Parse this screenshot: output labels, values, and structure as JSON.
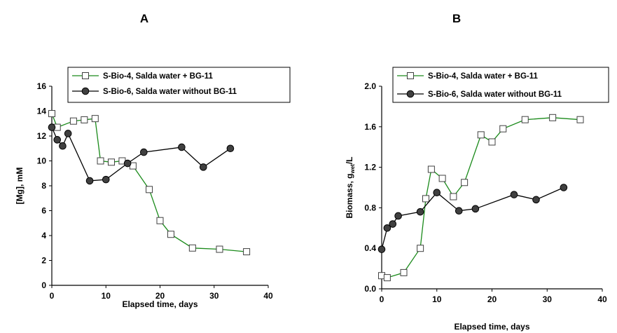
{
  "chart_data": [
    {
      "panel": "A",
      "type": "line",
      "xlabel": "Elapsed time, days",
      "ylabel": "[Mg], mM",
      "xlim": [
        0,
        40
      ],
      "ylim": [
        0,
        16
      ],
      "xticks": [
        0,
        10,
        20,
        30,
        40
      ],
      "yticks": [
        0,
        2,
        4,
        6,
        8,
        10,
        12,
        14,
        16
      ],
      "ytick_labels": [
        "0",
        "2",
        "4",
        "6",
        "8",
        "10",
        "12",
        "14",
        "16"
      ],
      "grid": false,
      "legend_position": "top",
      "series": [
        {
          "name": "S-Bio-4, Salda water + BG-11",
          "marker": "open-square",
          "line_color": "#1a8a1a",
          "x": [
            0,
            1,
            4,
            6,
            8,
            9,
            11,
            13,
            15,
            18,
            20,
            22,
            26,
            31,
            36
          ],
          "y": [
            13.8,
            12.7,
            13.2,
            13.3,
            13.4,
            10.0,
            9.9,
            10.0,
            9.6,
            7.7,
            5.2,
            4.1,
            3.0,
            2.9,
            2.7
          ]
        },
        {
          "name": "S-Bio-6, Salda  water without BG-11",
          "marker": "filled-circle",
          "line_color": "#000000",
          "x": [
            0,
            1,
            2,
            3,
            7,
            10,
            14,
            17,
            24,
            28,
            33
          ],
          "y": [
            12.7,
            11.7,
            11.2,
            12.2,
            8.4,
            8.5,
            9.8,
            10.7,
            11.1,
            9.5,
            11.0
          ]
        }
      ]
    },
    {
      "panel": "B",
      "type": "line",
      "xlabel": "Elapsed time, days",
      "ylabel": "Biomass, g",
      "ylabel_sub": "wet",
      "ylabel_tail": "/L",
      "xlim": [
        0,
        40
      ],
      "ylim": [
        0,
        2.0
      ],
      "xticks": [
        0,
        10,
        20,
        30,
        40
      ],
      "yticks": [
        0,
        0.4,
        0.8,
        1.2,
        1.6,
        2.0
      ],
      "ytick_labels": [
        "0.0",
        "0.4",
        "0.8",
        "1.2",
        "1.6",
        "2.0"
      ],
      "grid": false,
      "legend_position": "top",
      "series": [
        {
          "name": "S-Bio-4, Salda water + BG-11",
          "marker": "open-square",
          "line_color": "#1a8a1a",
          "x": [
            0,
            1,
            4,
            7,
            8,
            9,
            11,
            13,
            15,
            18,
            20,
            22,
            26,
            31,
            36
          ],
          "y": [
            0.13,
            0.11,
            0.16,
            0.4,
            0.89,
            1.18,
            1.09,
            0.91,
            1.05,
            1.52,
            1.45,
            1.58,
            1.67,
            1.69,
            1.67
          ]
        },
        {
          "name": "S-Bio-6, Salda water without BG-11",
          "marker": "filled-circle",
          "line_color": "#000000",
          "x": [
            0,
            1,
            2,
            3,
            7,
            10,
            14,
            17,
            24,
            28,
            33
          ],
          "y": [
            0.39,
            0.6,
            0.64,
            0.72,
            0.76,
            0.95,
            0.77,
            0.79,
            0.93,
            0.88,
            1.0
          ]
        }
      ]
    }
  ],
  "colors": {
    "green_line": "#1a8a1a",
    "black_line": "#000000",
    "marker_fill_dark": "#404040"
  }
}
